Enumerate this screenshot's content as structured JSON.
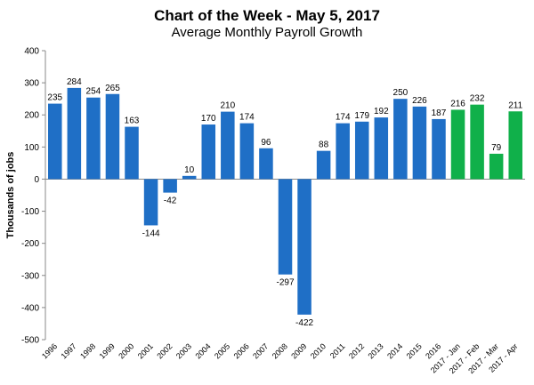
{
  "chart_data": {
    "type": "bar",
    "title": "Chart of the Week - May 5, 2017",
    "subtitle": "Average Monthly Payroll Growth",
    "xlabel": "",
    "ylabel": "Thousands of jobs",
    "ylim": [
      -500,
      400
    ],
    "ytick_step": 100,
    "grid": false,
    "categories": [
      "1996",
      "1997",
      "1998",
      "1999",
      "2000",
      "2001",
      "2002",
      "2003",
      "2004",
      "2005",
      "2006",
      "2007",
      "2008",
      "2009",
      "2010",
      "2011",
      "2012",
      "2013",
      "2014",
      "2015",
      "2016",
      "2017 - Jan",
      "2017 - Feb",
      "2017 - Mar",
      "2017 - Apr"
    ],
    "values": [
      235,
      284,
      254,
      265,
      163,
      -144,
      -42,
      10,
      170,
      210,
      174,
      96,
      -297,
      -422,
      88,
      174,
      179,
      192,
      250,
      226,
      187,
      216,
      232,
      79,
      211
    ],
    "data_labels": [
      "235",
      "284",
      "254",
      "265",
      "163",
      "-144",
      "-42",
      "10",
      "170",
      "210",
      "174",
      "96",
      "-297",
      "-422",
      "88",
      "174",
      "179",
      "192",
      "250",
      "226",
      "187",
      "216",
      "232",
      "79",
      "211"
    ],
    "colors": {
      "annual": "#1f6fc6",
      "monthly_2017": "#10b04a"
    },
    "bar_groups": [
      "annual",
      "annual",
      "annual",
      "annual",
      "annual",
      "annual",
      "annual",
      "annual",
      "annual",
      "annual",
      "annual",
      "annual",
      "annual",
      "annual",
      "annual",
      "annual",
      "annual",
      "annual",
      "annual",
      "annual",
      "annual",
      "monthly_2017",
      "monthly_2017",
      "monthly_2017",
      "monthly_2017"
    ]
  }
}
